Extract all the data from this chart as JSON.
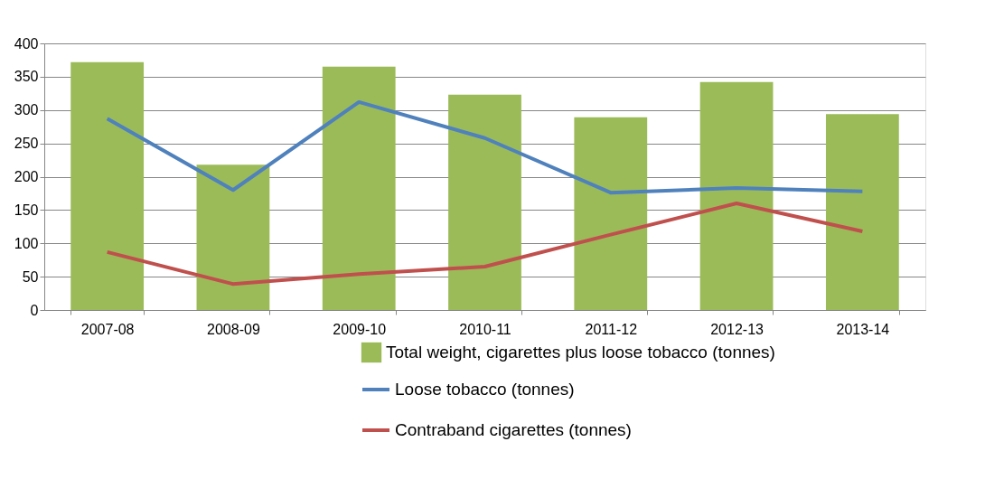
{
  "chart_data": {
    "type": "bar",
    "categories": [
      "2007-08",
      "2008-09",
      "2009-10",
      "2010-11",
      "2011-12",
      "2012-13",
      "2013-14"
    ],
    "series": [
      {
        "name": "Total weight, cigarettes plus loose tobacco (tonnes)",
        "color": "#9bbb59",
        "values": [
          372,
          218,
          365,
          323,
          289,
          342,
          294
        ]
      },
      {
        "name": "Loose tobacco (tonnes)",
        "type": "line",
        "color": "#4f81bd",
        "values": [
          287,
          180,
          312,
          258,
          176,
          183,
          178
        ]
      },
      {
        "name": "Contraband cigarettes (tonnes)",
        "type": "line",
        "color": "#c0504d",
        "values": [
          87,
          39,
          54,
          65,
          113,
          160,
          118
        ]
      }
    ],
    "ylim": [
      0,
      400
    ],
    "yticks": [
      0,
      50,
      100,
      150,
      200,
      250,
      300,
      350,
      400
    ],
    "grid": "y",
    "legend": "bottom",
    "marker": "none",
    "line_style": "solid"
  }
}
